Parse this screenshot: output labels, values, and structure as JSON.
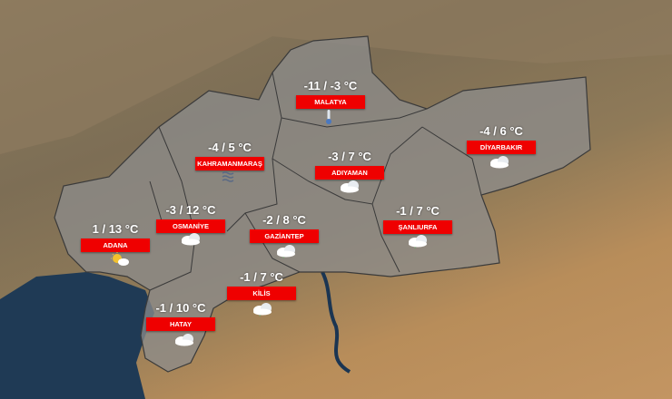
{
  "colors": {
    "label_bg": "#ef0000",
    "region": "#8c8c8c",
    "sea": "#1f3a55"
  },
  "cities": [
    {
      "name": "MALATYA",
      "temp": "-11 / -3 °C",
      "icon": "thermometer-icon"
    },
    {
      "name": "KAHRAMANMARAŞ",
      "temp": "-4 / 5 °C",
      "icon": "fog-icon"
    },
    {
      "name": "ADIYAMAN",
      "temp": "-3 / 7 °C",
      "icon": "cloud-icon"
    },
    {
      "name": "DİYARBAKIR",
      "temp": "-4 / 6 °C",
      "icon": "cloud-icon"
    },
    {
      "name": "OSMANİYE",
      "temp": "-3 / 12 °C",
      "icon": "cloud-icon"
    },
    {
      "name": "GAZİANTEP",
      "temp": "-2 / 8 °C",
      "icon": "rain-cloud-icon"
    },
    {
      "name": "ŞANLIURFA",
      "temp": "-1 / 7 °C",
      "icon": "rain-cloud-icon"
    },
    {
      "name": "ADANA",
      "temp": "1 / 13 °C",
      "icon": "sun-cloud-icon"
    },
    {
      "name": "KİLİS",
      "temp": "-1 / 7 °C",
      "icon": "rain-cloud-icon"
    },
    {
      "name": "HATAY",
      "temp": "-1 / 10 °C",
      "icon": "cloud-icon"
    }
  ]
}
